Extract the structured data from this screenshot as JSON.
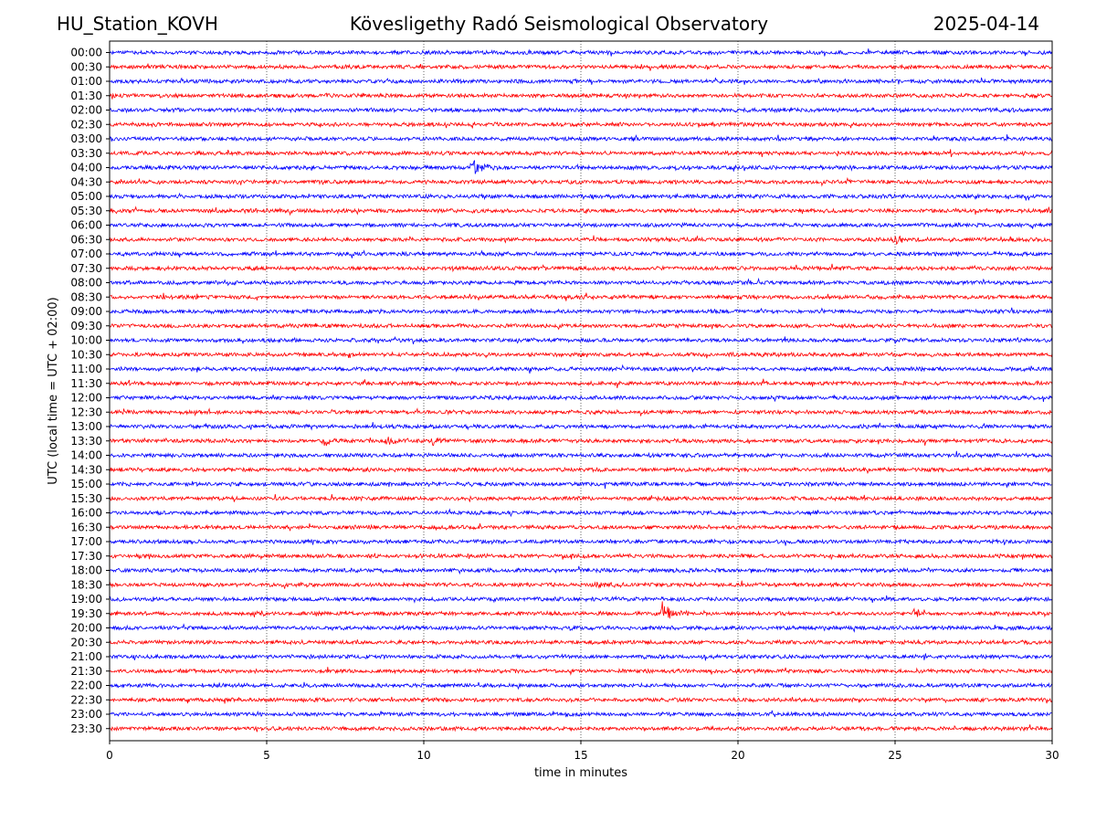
{
  "header": {
    "station": "HU_Station_KOVH",
    "observatory": "Kövesligethy Radó Seismological Observatory",
    "date": "2025-04-14"
  },
  "chart_data": {
    "type": "line",
    "title": "Kövesligethy Radó Seismological Observatory",
    "xlabel": "time in minutes",
    "ylabel": "UTC (local time = UTC + 02:00)",
    "xlim": [
      0,
      30
    ],
    "xticks": [
      "0",
      "5",
      "10",
      "15",
      "20",
      "25",
      "30"
    ],
    "grid_x": true,
    "row_labels": [
      "00:00",
      "00:30",
      "01:00",
      "01:30",
      "02:00",
      "02:30",
      "03:00",
      "03:30",
      "04:00",
      "04:30",
      "05:00",
      "05:30",
      "06:00",
      "06:30",
      "07:00",
      "07:30",
      "08:00",
      "08:30",
      "09:00",
      "09:30",
      "10:00",
      "10:30",
      "11:00",
      "11:30",
      "12:00",
      "12:30",
      "13:00",
      "13:30",
      "14:00",
      "14:30",
      "15:00",
      "15:30",
      "16:00",
      "16:30",
      "17:00",
      "17:30",
      "18:00",
      "18:30",
      "19:00",
      "19:30",
      "20:00",
      "20:30",
      "21:00",
      "21:30",
      "22:00",
      "22:30",
      "23:00",
      "23:30"
    ],
    "trace_colors": [
      "#0000ff",
      "#ff0000"
    ],
    "noise_level": 0.2,
    "events": [
      {
        "row": "04:00",
        "minute": 11.5,
        "amplitude": 1.0
      },
      {
        "row": "06:30",
        "minute": 25.0,
        "amplitude": 0.5
      },
      {
        "row": "13:30",
        "minute": 6.8,
        "amplitude": 0.4
      },
      {
        "row": "13:30",
        "minute": 8.8,
        "amplitude": 0.4
      },
      {
        "row": "13:30",
        "minute": 10.3,
        "amplitude": 0.4
      },
      {
        "row": "18:30",
        "minute": 15.5,
        "amplitude": 0.6
      },
      {
        "row": "19:30",
        "minute": 17.6,
        "amplitude": 1.2
      },
      {
        "row": "19:30",
        "minute": 25.6,
        "amplitude": 0.4
      }
    ]
  }
}
